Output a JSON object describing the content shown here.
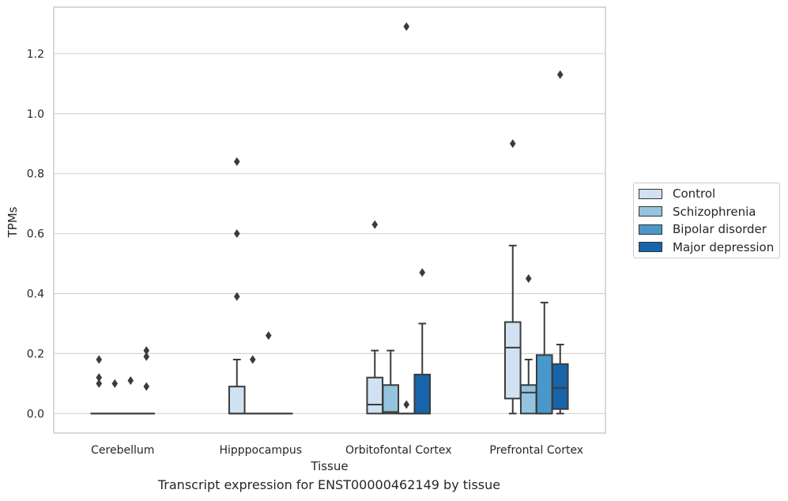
{
  "chart_data": {
    "type": "boxplot",
    "title": "Transcript expression for ENST00000462149 by tissue",
    "xlabel": "Tissue",
    "ylabel": "TPMs",
    "ylim": [
      -0.065,
      1.355
    ],
    "yticks": [
      0.0,
      0.2,
      0.4,
      0.6,
      0.8,
      1.0,
      1.2
    ],
    "ytick_labels": [
      "0.0",
      "0.2",
      "0.4",
      "0.6",
      "0.8",
      "1.0",
      "1.2"
    ],
    "categories": [
      "Cerebellum",
      "Hipppocampus",
      "Orbitofontal Cortex",
      "Prefrontal Cortex"
    ],
    "grid": "horizontal",
    "legend_position": "right",
    "series": [
      {
        "name": "Control",
        "color": "#d0e1f2",
        "boxes": [
          {
            "whislo": 0,
            "q1": 0,
            "med": 0,
            "q3": 0,
            "whishi": 0,
            "fliers": [
              0.18,
              0.12,
              0.1
            ]
          },
          {
            "whislo": 0,
            "q1": 0,
            "med": 0,
            "q3": 0.09,
            "whishi": 0.18,
            "fliers": [
              0.84,
              0.6,
              0.39
            ]
          },
          {
            "whislo": 0,
            "q1": 0,
            "med": 0.03,
            "q3": 0.12,
            "whishi": 0.21,
            "fliers": [
              0.63
            ]
          },
          {
            "whislo": 0,
            "q1": 0.05,
            "med": 0.22,
            "q3": 0.305,
            "whishi": 0.56,
            "fliers": [
              0.9
            ]
          }
        ]
      },
      {
        "name": "Schizophrenia",
        "color": "#94c4df",
        "boxes": [
          {
            "whislo": 0,
            "q1": 0,
            "med": 0,
            "q3": 0,
            "whishi": 0,
            "fliers": [
              0.1
            ]
          },
          {
            "whislo": 0,
            "q1": 0,
            "med": 0,
            "q3": 0,
            "whishi": 0,
            "fliers": [
              0.18
            ]
          },
          {
            "whislo": 0,
            "q1": 0,
            "med": 0.005,
            "q3": 0.095,
            "whishi": 0.21,
            "fliers": []
          },
          {
            "whislo": 0,
            "q1": 0,
            "med": 0.07,
            "q3": 0.095,
            "whishi": 0.18,
            "fliers": [
              0.45
            ]
          }
        ]
      },
      {
        "name": "Bipolar disorder",
        "color": "#4a98c9",
        "boxes": [
          {
            "whislo": 0,
            "q1": 0,
            "med": 0,
            "q3": 0,
            "whishi": 0,
            "fliers": [
              0.11
            ]
          },
          {
            "whislo": 0,
            "q1": 0,
            "med": 0,
            "q3": 0,
            "whishi": 0,
            "fliers": [
              0.26
            ]
          },
          {
            "whislo": 0,
            "q1": 0,
            "med": 0,
            "q3": 0,
            "whishi": 0,
            "fliers": [
              0.03,
              1.29
            ]
          },
          {
            "whislo": 0,
            "q1": 0,
            "med": 0,
            "q3": 0.195,
            "whishi": 0.37,
            "fliers": []
          }
        ]
      },
      {
        "name": "Major depression",
        "color": "#1764ab",
        "boxes": [
          {
            "whislo": 0,
            "q1": 0,
            "med": 0,
            "q3": 0,
            "whishi": 0,
            "fliers": [
              0.21,
              0.19,
              0.09
            ]
          },
          {
            "whislo": 0,
            "q1": 0,
            "med": 0,
            "q3": 0,
            "whishi": 0,
            "fliers": []
          },
          {
            "whislo": 0,
            "q1": 0,
            "med": 0,
            "q3": 0.13,
            "whishi": 0.3,
            "fliers": [
              0.47
            ]
          },
          {
            "whislo": 0,
            "q1": 0.015,
            "med": 0.085,
            "q3": 0.165,
            "whishi": 0.23,
            "fliers": [
              1.13
            ]
          }
        ]
      }
    ]
  }
}
